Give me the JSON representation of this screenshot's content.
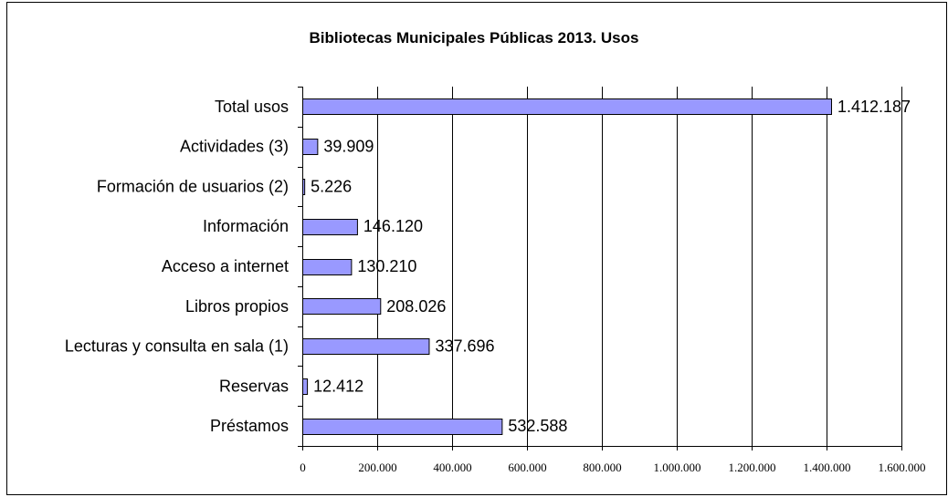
{
  "chart_data": {
    "type": "bar",
    "orientation": "horizontal",
    "title": "Bibliotecas Municipales Públicas 2013. Usos",
    "categories": [
      "Total usos",
      "Actividades (3)",
      "Formación de usuarios (2)",
      "Información",
      "Acceso a internet",
      "Libros propios",
      "Lecturas y consulta en sala (1)",
      "Reservas",
      "Préstamos"
    ],
    "values": [
      1412187,
      39909,
      5226,
      146120,
      130210,
      208026,
      337696,
      12412,
      532588
    ],
    "value_labels": [
      "1.412.187",
      "39.909",
      "5.226",
      "146.120",
      "130.210",
      "208.026",
      "337.696",
      "12.412",
      "532.588"
    ],
    "xlim": [
      0,
      1600000
    ],
    "x_ticks": [
      0,
      200000,
      400000,
      600000,
      800000,
      1000000,
      1200000,
      1400000,
      1600000
    ],
    "x_tick_labels": [
      "0",
      "200.000",
      "400.000",
      "600.000",
      "800.000",
      "1.000.000",
      "1.200.000",
      "1.400.000",
      "1.600.000"
    ],
    "xlabel": "",
    "ylabel": "",
    "grid": "vertical",
    "legend": "none",
    "colors": {
      "bar_fill": "#9999ff",
      "bar_stroke": "#000000",
      "grid": "#000000"
    }
  }
}
